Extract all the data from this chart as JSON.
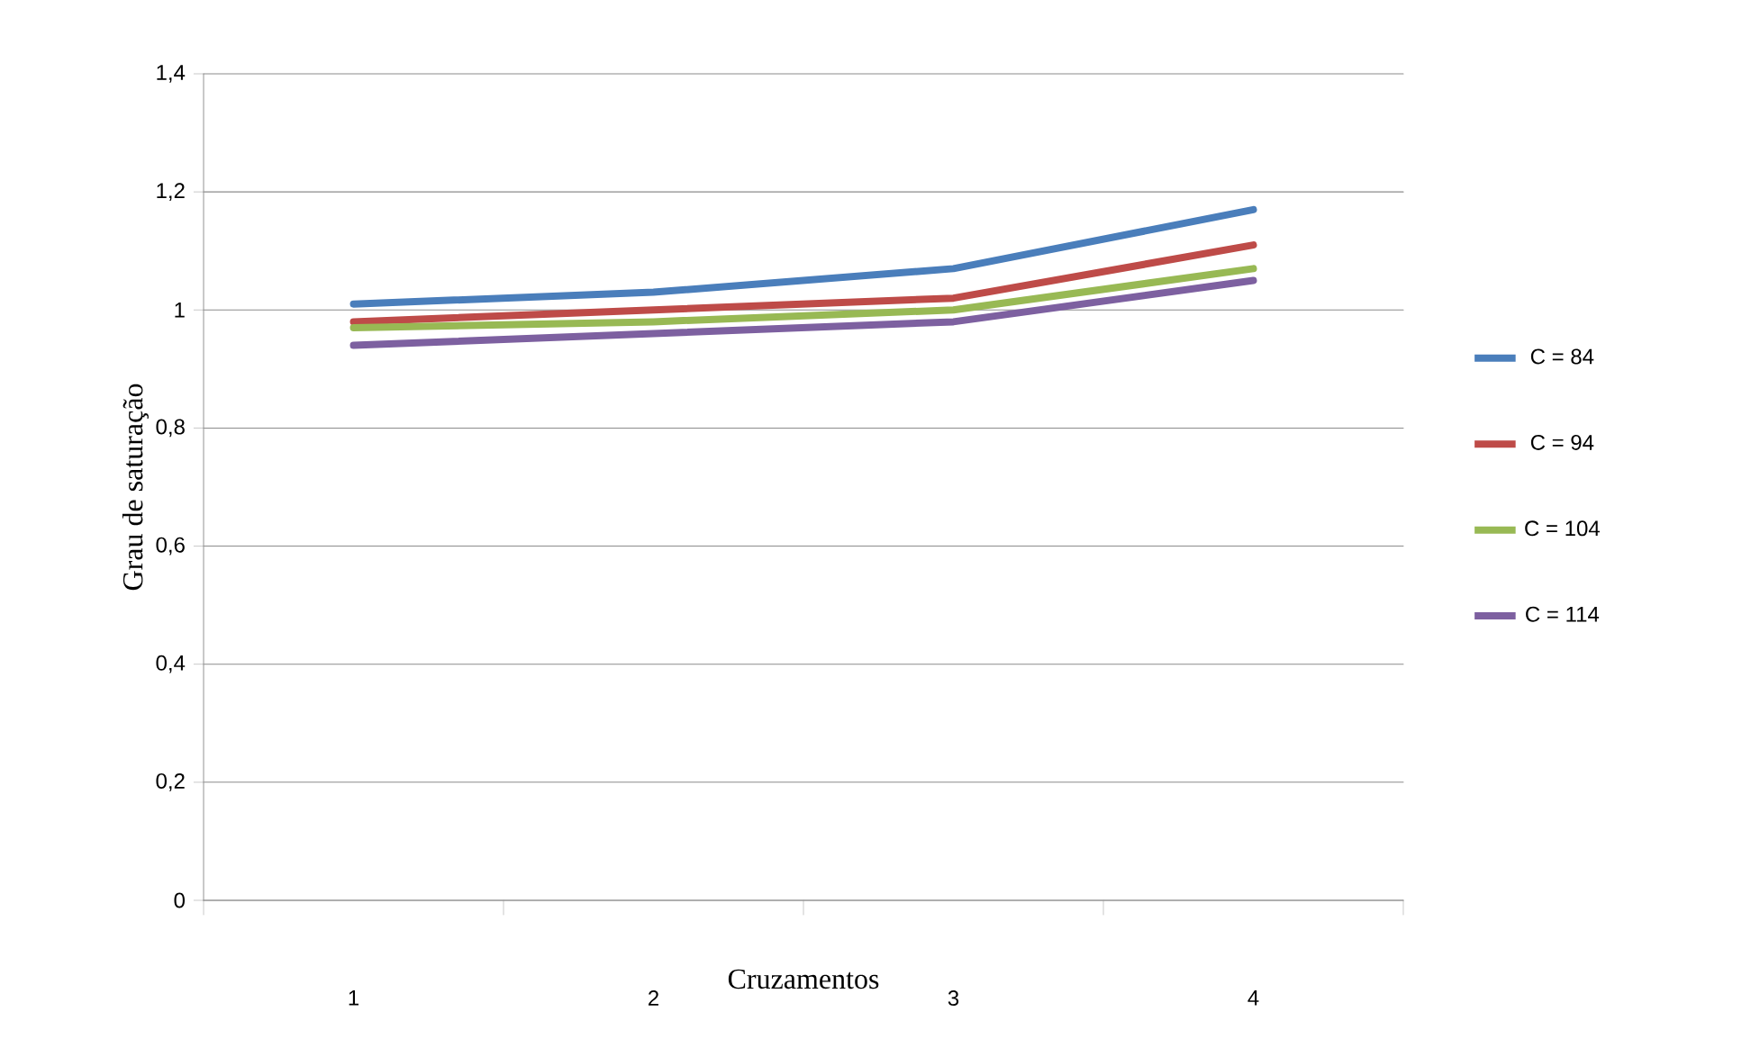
{
  "chart_data": {
    "type": "line",
    "xlabel": "Cruzamentos",
    "ylabel": "Grau de saturação",
    "categories": [
      "1",
      "2",
      "3",
      "4"
    ],
    "series": [
      {
        "name": "C = 84",
        "color": "#4a7ebb",
        "values": [
          1.01,
          1.03,
          1.07,
          1.17
        ]
      },
      {
        "name": "C = 94",
        "color": "#be4b48",
        "values": [
          0.98,
          1.0,
          1.02,
          1.11
        ]
      },
      {
        "name": "C = 104",
        "color": "#98b954",
        "values": [
          0.97,
          0.98,
          1.0,
          1.07
        ]
      },
      {
        "name": "C = 114",
        "color": "#7d60a0",
        "values": [
          0.94,
          0.96,
          0.98,
          1.05
        ]
      }
    ],
    "ylim": [
      0,
      1.4
    ],
    "yticks": [
      0,
      {
        "value": 0.2,
        "label": "0,2"
      },
      {
        "value": 0.4,
        "label": "0,4"
      },
      {
        "value": 0.6,
        "label": "0,6"
      },
      {
        "value": 0.8,
        "label": "0,8"
      },
      1,
      {
        "value": 1.2,
        "label": "1,2"
      },
      {
        "value": 1.4,
        "label": "1,4"
      }
    ],
    "grid": "y",
    "legend": "right",
    "marker": "none",
    "line_style": "solid"
  }
}
